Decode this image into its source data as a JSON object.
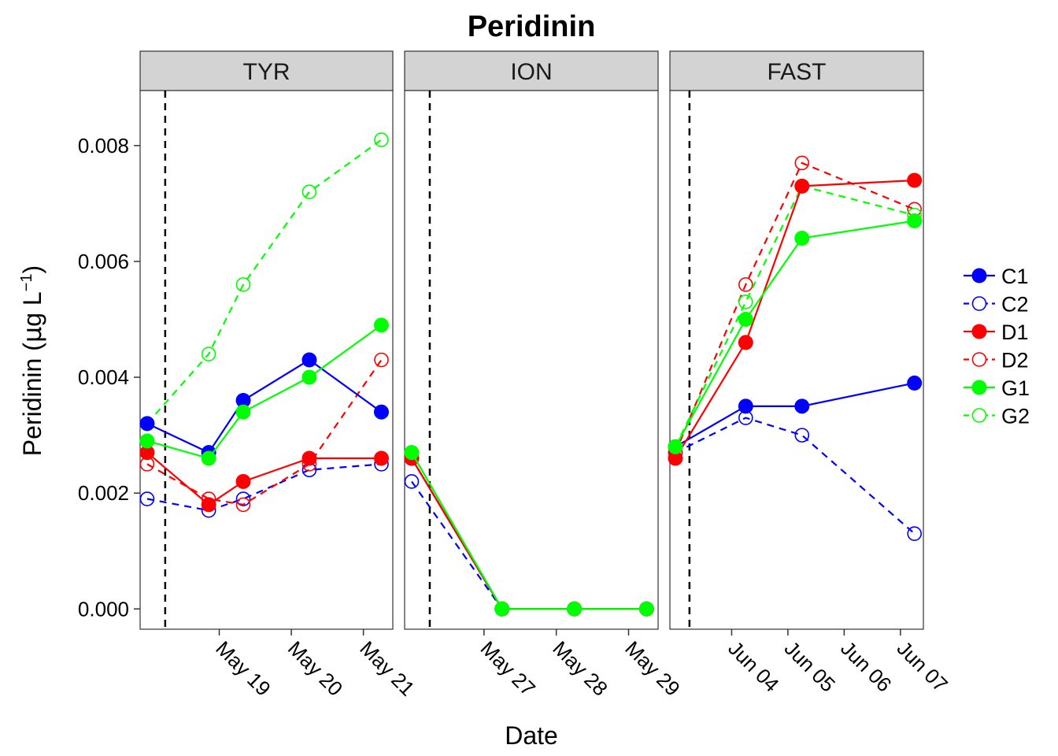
{
  "chart_data": {
    "type": "line",
    "title": "Peridinin",
    "xlabel": "Date",
    "ylabel": "Peridinin (µg L⁻¹)",
    "ylabel_parts": {
      "prefix": "Peridinin (",
      "mu": "µ",
      "g": "g L",
      "sup": "−1",
      "suffix": ")"
    },
    "ylim": [
      -0.00035,
      0.00895
    ],
    "yticks": [
      0,
      0.002,
      0.004,
      0.006,
      0.008
    ],
    "ytick_labels": [
      "0.000",
      "0.002",
      "0.004",
      "0.006",
      "0.008"
    ],
    "grid": false,
    "legend_position": "right",
    "colors": {
      "C": "#0000ff",
      "D": "#ff0000",
      "G": "#00ff00"
    },
    "panels": [
      {
        "name": "TYR",
        "xlim": [
          "2016-05-17T21:39",
          "2016-05-21T09:48"
        ],
        "event_line": "2016-05-18T06:00",
        "xticks": [
          {
            "date": "2016-05-19",
            "label": "May 19"
          },
          {
            "date": "2016-05-20",
            "label": "May 20"
          },
          {
            "date": "2016-05-21",
            "label": "May 21"
          }
        ],
        "series": [
          {
            "name": "C1",
            "x": [
              "2016-05-18T00:00",
              "2016-05-18T20:30",
              "2016-05-19T08:00",
              "2016-05-20T06:00",
              "2016-05-21T06:00"
            ],
            "y": [
              0.0032,
              0.0027,
              0.0036,
              0.0043,
              0.0034
            ]
          },
          {
            "name": "C2",
            "x": [
              "2016-05-18T00:00",
              "2016-05-18T20:30",
              "2016-05-19T08:00",
              "2016-05-20T06:00",
              "2016-05-21T06:00"
            ],
            "y": [
              0.0019,
              0.0017,
              0.0019,
              0.0024,
              0.0025
            ]
          },
          {
            "name": "D1",
            "x": [
              "2016-05-18T00:00",
              "2016-05-18T20:30",
              "2016-05-19T08:00",
              "2016-05-20T06:00",
              "2016-05-21T06:00"
            ],
            "y": [
              0.0027,
              0.0018,
              0.0022,
              0.0026,
              0.0026
            ]
          },
          {
            "name": "D2",
            "x": [
              "2016-05-18T00:00",
              "2016-05-18T20:30",
              "2016-05-19T08:00",
              "2016-05-20T06:00",
              "2016-05-21T06:00"
            ],
            "y": [
              0.0025,
              0.0019,
              0.0018,
              0.0025,
              0.0043
            ]
          },
          {
            "name": "G1",
            "x": [
              "2016-05-18T00:00",
              "2016-05-18T20:30",
              "2016-05-19T08:00",
              "2016-05-20T06:00",
              "2016-05-21T06:00"
            ],
            "y": [
              0.0029,
              0.0026,
              0.0034,
              0.004,
              0.0049
            ]
          },
          {
            "name": "G2",
            "x": [
              "2016-05-18T00:00",
              "2016-05-18T20:30",
              "2016-05-19T08:00",
              "2016-05-20T06:00",
              "2016-05-21T06:00"
            ],
            "y": [
              0.0032,
              0.0044,
              0.0056,
              0.0072,
              0.0081
            ]
          }
        ]
      },
      {
        "name": "ION",
        "xlim": [
          "2016-05-25T21:39",
          "2016-05-29T09:48"
        ],
        "event_line": "2016-05-26T06:00",
        "xticks": [
          {
            "date": "2016-05-27",
            "label": "May 27"
          },
          {
            "date": "2016-05-28",
            "label": "May 28"
          },
          {
            "date": "2016-05-29",
            "label": "May 29"
          }
        ],
        "series": [
          {
            "name": "C1",
            "x": [
              "2016-05-26T00:00",
              "2016-05-27T06:00",
              "2016-05-28T06:00",
              "2016-05-29T06:00"
            ],
            "y": [
              0.0026,
              0,
              0,
              0
            ]
          },
          {
            "name": "C2",
            "x": [
              "2016-05-26T00:00",
              "2016-05-27T06:00",
              "2016-05-28T06:00",
              "2016-05-29T06:00"
            ],
            "y": [
              0.0022,
              0,
              0,
              0
            ]
          },
          {
            "name": "D1",
            "x": [
              "2016-05-26T00:00",
              "2016-05-27T06:00",
              "2016-05-28T06:00",
              "2016-05-29T06:00"
            ],
            "y": [
              0.0026,
              0,
              0,
              0
            ]
          },
          {
            "name": "D2",
            "x": [
              "2016-05-26T00:00",
              "2016-05-27T06:00",
              "2016-05-28T06:00",
              "2016-05-29T06:00"
            ],
            "y": [
              0.0026,
              0,
              0,
              0
            ]
          },
          {
            "name": "G1",
            "x": [
              "2016-05-26T00:00",
              "2016-05-27T06:00",
              "2016-05-28T06:00",
              "2016-05-29T06:00"
            ],
            "y": [
              0.0027,
              0,
              0,
              0
            ]
          },
          {
            "name": "G2",
            "x": [
              "2016-05-26T00:00",
              "2016-05-27T06:00",
              "2016-05-28T06:00",
              "2016-05-29T06:00"
            ],
            "y": [
              0.0027,
              0,
              0,
              0
            ]
          }
        ]
      },
      {
        "name": "FAST",
        "xlim": [
          "2016-06-02T21:39",
          "2016-06-07T09:48"
        ],
        "event_line": "2016-06-03T06:00",
        "xticks": [
          {
            "date": "2016-06-04",
            "label": "Jun 04"
          },
          {
            "date": "2016-06-05",
            "label": "Jun 05"
          },
          {
            "date": "2016-06-06",
            "label": "Jun 06"
          },
          {
            "date": "2016-06-07",
            "label": "Jun 07"
          }
        ],
        "series": [
          {
            "name": "C1",
            "x": [
              "2016-06-03T00:00",
              "2016-06-04T06:00",
              "2016-06-05T06:00",
              "2016-06-07T06:00"
            ],
            "y": [
              0.0028,
              0.0035,
              0.0035,
              0.0039
            ]
          },
          {
            "name": "C2",
            "x": [
              "2016-06-03T00:00",
              "2016-06-04T06:00",
              "2016-06-05T06:00",
              "2016-06-07T06:00"
            ],
            "y": [
              0.0027,
              0.0033,
              0.003,
              0.0013
            ]
          },
          {
            "name": "D1",
            "x": [
              "2016-06-03T00:00",
              "2016-06-04T06:00",
              "2016-06-05T06:00",
              "2016-06-07T06:00"
            ],
            "y": [
              0.0026,
              0.0046,
              0.0073,
              0.0074
            ]
          },
          {
            "name": "D2",
            "x": [
              "2016-06-03T00:00",
              "2016-06-04T06:00",
              "2016-06-05T06:00",
              "2016-06-07T06:00"
            ],
            "y": [
              0.0027,
              0.0056,
              0.0077,
              0.0069
            ]
          },
          {
            "name": "G1",
            "x": [
              "2016-06-03T00:00",
              "2016-06-04T06:00",
              "2016-06-05T06:00",
              "2016-06-07T06:00"
            ],
            "y": [
              0.0028,
              0.005,
              0.0064,
              0.0067
            ]
          },
          {
            "name": "G2",
            "x": [
              "2016-06-03T00:00",
              "2016-06-04T06:00",
              "2016-06-05T06:00",
              "2016-06-07T06:00"
            ],
            "y": [
              0.0028,
              0.0053,
              0.0073,
              0.0068
            ]
          }
        ]
      }
    ],
    "legend": [
      {
        "name": "C1",
        "color": "#0000ff",
        "filled": true,
        "dashed": false
      },
      {
        "name": "C2",
        "color": "#0000ff",
        "filled": false,
        "dashed": true
      },
      {
        "name": "D1",
        "color": "#ff0000",
        "filled": true,
        "dashed": false
      },
      {
        "name": "D2",
        "color": "#ff0000",
        "filled": false,
        "dashed": true
      },
      {
        "name": "G1",
        "color": "#00ff00",
        "filled": true,
        "dashed": false
      },
      {
        "name": "G2",
        "color": "#00ff00",
        "filled": false,
        "dashed": true
      }
    ]
  }
}
